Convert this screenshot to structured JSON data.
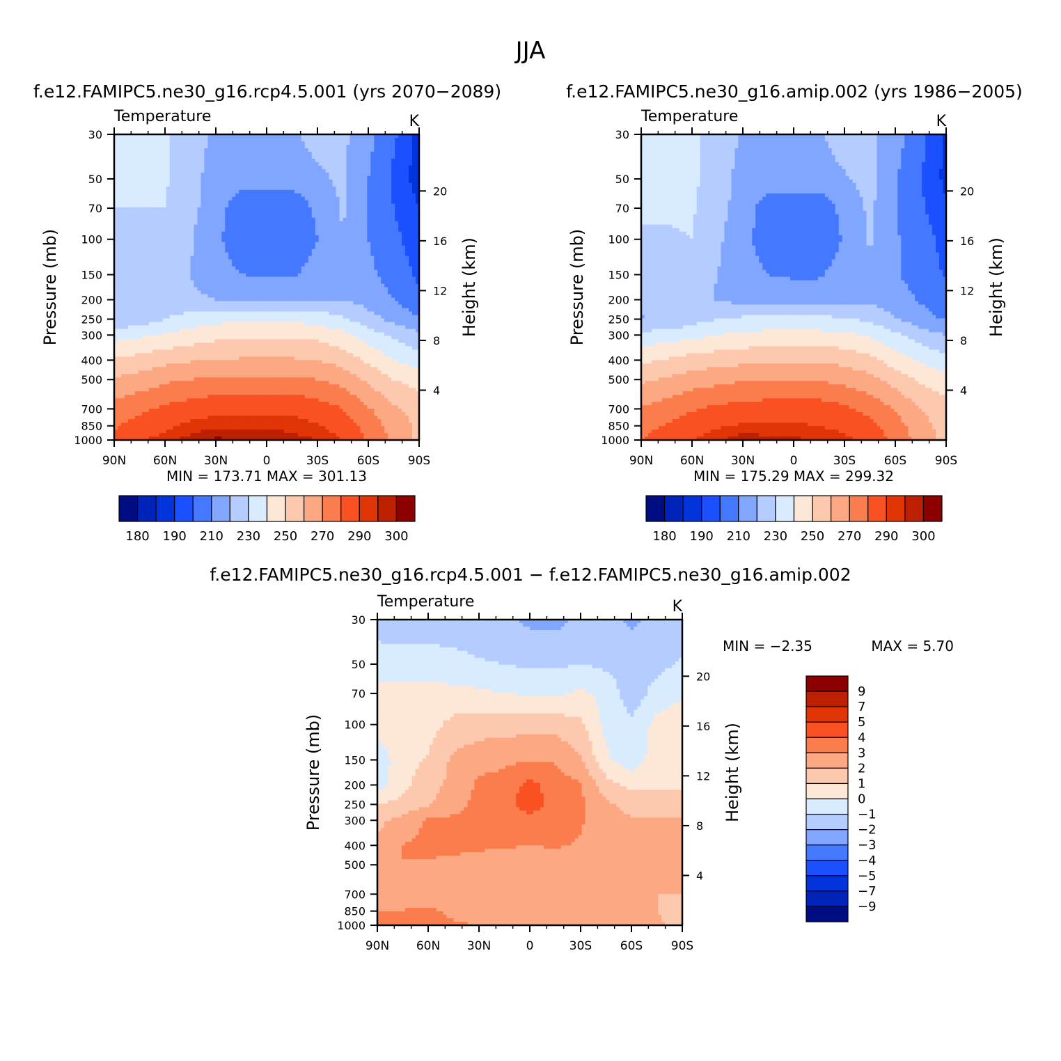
{
  "figure": {
    "title": "JJA",
    "diff_title": "f.e12.FAMIPC5.ne30_g16.rcp4.5.001 − f.e12.FAMIPC5.ne30_g16.amip.002"
  },
  "colors": {
    "abs_palette": [
      "#000d82",
      "#0023ba",
      "#0234db",
      "#1a50ff",
      "#4478ff",
      "#80a6ff",
      "#b4ccff",
      "#d9ebff",
      "#fde8d7",
      "#fdc9ae",
      "#fca883",
      "#fb7d4d",
      "#fa5122",
      "#e13506",
      "#bd2000",
      "#8c0000"
    ],
    "diff_palette": [
      "#000d82",
      "#0023ba",
      "#0234db",
      "#1a50ff",
      "#4478ff",
      "#80a6ff",
      "#b4ccff",
      "#d9ebff",
      "#fde8d7",
      "#fdc9ae",
      "#fca883",
      "#fb7d4d",
      "#fa5122",
      "#e13506",
      "#bd2000",
      "#8c0000"
    ]
  },
  "chart_data": [
    {
      "type": "heatmap",
      "title": "f.e12.FAMIPC5.ne30_g16.rcp4.5.001 (yrs 2070−2089)",
      "subtitle": "Temperature",
      "units": "K",
      "xlabel": "",
      "ylabel": "Pressure (mb)",
      "y2label": "Height (km)",
      "x_ticks": [
        "90N",
        "60N",
        "30N",
        "0",
        "30S",
        "60S",
        "90S"
      ],
      "x_tick_values": [
        90,
        60,
        30,
        0,
        -30,
        -60,
        -90
      ],
      "y_ticks": [
        30,
        50,
        70,
        100,
        150,
        200,
        250,
        300,
        400,
        500,
        700,
        850,
        1000
      ],
      "y2_ticks": [
        20,
        16,
        12,
        8,
        4
      ],
      "ylim": [
        1000,
        30
      ],
      "min_label": "MIN = 173.71",
      "max_label": "MAX = 301.13",
      "levels": [
        180,
        185,
        190,
        200,
        210,
        220,
        230,
        240,
        250,
        260,
        270,
        280,
        290,
        295,
        300
      ],
      "colorbar_labels": [
        "180",
        "190",
        "210",
        "230",
        "250",
        "270",
        "290",
        "300"
      ],
      "latitude": [
        90,
        75,
        60,
        45,
        30,
        15,
        0,
        -15,
        -30,
        -45,
        -60,
        -75,
        -90
      ],
      "pressure": [
        30,
        50,
        70,
        100,
        150,
        200,
        250,
        300,
        400,
        500,
        700,
        850,
        1000
      ],
      "values": [
        [
          230,
          230,
          231,
          225,
          218,
          218,
          218,
          218,
          224,
          222,
          213,
          202,
          186
        ],
        [
          231,
          230,
          231,
          224,
          215,
          214,
          214,
          214,
          218,
          222,
          210,
          198,
          185
        ],
        [
          230,
          230,
          230,
          223,
          214,
          204,
          203,
          203,
          212,
          221,
          210,
          200,
          190
        ],
        [
          228,
          228,
          229,
          221,
          212,
          204,
          202,
          202,
          210,
          220,
          210,
          203,
          194
        ],
        [
          227,
          227,
          227,
          220,
          214,
          210,
          209,
          209,
          214,
          220,
          212,
          206,
          198
        ],
        [
          225,
          228,
          226,
          222,
          220,
          218,
          218,
          218,
          220,
          220,
          216,
          210,
          203
        ],
        [
          222,
          224,
          230,
          234,
          237,
          238,
          238,
          238,
          236,
          232,
          224,
          217,
          211
        ],
        [
          236,
          238,
          241,
          244,
          247,
          248,
          248,
          248,
          247,
          243,
          235,
          228,
          222
        ],
        [
          251,
          254,
          257,
          259,
          260,
          261,
          261,
          261,
          260,
          256,
          248,
          240,
          235
        ],
        [
          261,
          264,
          268,
          270,
          272,
          272,
          272,
          272,
          270,
          266,
          258,
          250,
          246
        ],
        [
          274,
          278,
          282,
          285,
          287,
          288,
          288,
          288,
          285,
          280,
          271,
          262,
          256
        ],
        [
          279,
          284,
          288,
          292,
          294,
          294,
          294,
          293,
          291,
          286,
          276,
          266,
          258
        ],
        [
          283,
          289,
          293,
          297,
          301,
          300,
          299,
          297,
          295,
          290,
          279,
          268,
          258
        ]
      ]
    },
    {
      "type": "heatmap",
      "title": "f.e12.FAMIPC5.ne30_g16.amip.002 (yrs 1986−2005)",
      "subtitle": "Temperature",
      "units": "K",
      "xlabel": "",
      "ylabel": "Pressure (mb)",
      "y2label": "Height (km)",
      "x_ticks": [
        "90N",
        "60N",
        "30N",
        "0",
        "30S",
        "60S",
        "90S"
      ],
      "x_tick_values": [
        90,
        60,
        30,
        0,
        -30,
        -60,
        -90
      ],
      "y_ticks": [
        30,
        50,
        70,
        100,
        150,
        200,
        250,
        300,
        400,
        500,
        700,
        850,
        1000
      ],
      "y2_ticks": [
        20,
        16,
        12,
        8,
        4
      ],
      "ylim": [
        1000,
        30
      ],
      "min_label": "MIN = 175.29",
      "max_label": "MAX = 299.32",
      "levels": [
        180,
        185,
        190,
        200,
        210,
        220,
        230,
        240,
        250,
        260,
        270,
        280,
        290,
        295,
        300
      ],
      "colorbar_labels": [
        "180",
        "190",
        "210",
        "230",
        "250",
        "270",
        "290",
        "300"
      ],
      "latitude": [
        90,
        75,
        60,
        45,
        30,
        15,
        0,
        -15,
        -30,
        -45,
        -60,
        -75,
        -90
      ],
      "pressure": [
        30,
        50,
        70,
        100,
        150,
        200,
        250,
        300,
        400,
        500,
        700,
        850,
        1000
      ],
      "values": [
        [
          231,
          231,
          232,
          226,
          219,
          219,
          219,
          219,
          225,
          223,
          214,
          204,
          188
        ],
        [
          232,
          231,
          232,
          225,
          216,
          215,
          215,
          215,
          219,
          223,
          211,
          200,
          187
        ],
        [
          231,
          231,
          231,
          224,
          215,
          205,
          204,
          204,
          213,
          222,
          211,
          202,
          192
        ],
        [
          229,
          229,
          230,
          222,
          213,
          205,
          203,
          203,
          211,
          221,
          211,
          205,
          196
        ],
        [
          227,
          227,
          227,
          220,
          214,
          210,
          209,
          209,
          214,
          219,
          211,
          206,
          199
        ],
        [
          224,
          226,
          224,
          219,
          217,
          215,
          215,
          215,
          217,
          218,
          214,
          209,
          203
        ],
        [
          219,
          221,
          226,
          230,
          232,
          233,
          233,
          233,
          231,
          228,
          221,
          214,
          209
        ],
        [
          233,
          235,
          237,
          240,
          242,
          243,
          243,
          243,
          242,
          239,
          232,
          225,
          220
        ],
        [
          248,
          251,
          254,
          256,
          257,
          258,
          258,
          258,
          257,
          253,
          245,
          238,
          233
        ],
        [
          258,
          261,
          265,
          267,
          269,
          269,
          269,
          269,
          267,
          263,
          256,
          248,
          244
        ],
        [
          271,
          275,
          279,
          282,
          284,
          285,
          285,
          285,
          282,
          277,
          269,
          260,
          254
        ],
        [
          276,
          281,
          285,
          289,
          291,
          291,
          291,
          290,
          288,
          283,
          274,
          264,
          256
        ],
        [
          280,
          286,
          290,
          294,
          298,
          297,
          296,
          294,
          292,
          287,
          277,
          266,
          256
        ]
      ]
    },
    {
      "type": "heatmap",
      "title": "f.e12.FAMIPC5.ne30_g16.rcp4.5.001 − f.e12.FAMIPC5.ne30_g16.amip.002",
      "subtitle": "Temperature",
      "units": "K",
      "xlabel": "",
      "ylabel": "Pressure (mb)",
      "y2label": "Height (km)",
      "x_ticks": [
        "90N",
        "60N",
        "30N",
        "0",
        "30S",
        "60S",
        "90S"
      ],
      "x_tick_values": [
        90,
        60,
        30,
        0,
        -30,
        -60,
        -90
      ],
      "y_ticks": [
        30,
        50,
        70,
        100,
        150,
        200,
        250,
        300,
        400,
        500,
        700,
        850,
        1000
      ],
      "y2_ticks": [
        20,
        16,
        12,
        8,
        4
      ],
      "ylim": [
        1000,
        30
      ],
      "min_label": "MIN =   −2.35",
      "max_label": "MAX =    5.70",
      "levels": [
        -9,
        -7,
        -5,
        -4,
        -3,
        -2,
        -1,
        0,
        1,
        2,
        3,
        4,
        5,
        7,
        9
      ],
      "colorbar_labels": [
        "9",
        "7",
        "5",
        "4",
        "3",
        "2",
        "1",
        "0",
        "−1",
        "−2",
        "−3",
        "−4",
        "−5",
        "−7",
        "−9"
      ],
      "latitude": [
        90,
        75,
        60,
        45,
        30,
        15,
        0,
        -15,
        -30,
        -45,
        -60,
        -75,
        -90
      ],
      "pressure": [
        30,
        50,
        70,
        100,
        150,
        200,
        250,
        300,
        400,
        500,
        700,
        850,
        1000
      ],
      "values": [
        [
          -1.5,
          -1.5,
          -1.5,
          -1.5,
          -1.6,
          -1.8,
          -2.2,
          -2.3,
          -1.7,
          -1.5,
          -2.2,
          -1.6,
          -1.5
        ],
        [
          -0.5,
          -0.6,
          -0.6,
          -0.7,
          -0.9,
          -1.0,
          -1.2,
          -1.2,
          -1.0,
          -1.2,
          -1.5,
          -1.3,
          -0.9
        ],
        [
          0.3,
          0.3,
          0.4,
          0.3,
          0.2,
          0.0,
          -0.1,
          -0.2,
          0.2,
          -0.3,
          -1.6,
          -0.6,
          -0.1
        ],
        [
          0.4,
          0.4,
          0.6,
          1.3,
          1.5,
          1.6,
          1.6,
          1.6,
          1.2,
          -0.3,
          -0.8,
          0.3,
          0.6
        ],
        [
          -0.6,
          0.6,
          1.1,
          2.2,
          2.6,
          2.8,
          2.9,
          2.9,
          2.1,
          0.2,
          -0.6,
          0.5,
          0.7
        ],
        [
          -0.5,
          0.7,
          1.6,
          2.3,
          3.2,
          3.4,
          4.3,
          3.5,
          3.1,
          1.4,
          0.7,
          0.8,
          0.8
        ],
        [
          1.0,
          1.3,
          1.9,
          2.6,
          3.3,
          3.6,
          4.6,
          3.6,
          3.2,
          2.2,
          1.6,
          1.5,
          1.5
        ],
        [
          1.8,
          2.3,
          3.1,
          3.2,
          3.4,
          3.6,
          3.6,
          3.5,
          3.1,
          2.4,
          2.1,
          2.1,
          2.1
        ],
        [
          2.1,
          3.0,
          3.4,
          3.3,
          3.2,
          3.1,
          3.0,
          3.1,
          2.9,
          2.3,
          2.1,
          2.1,
          2.1
        ],
        [
          2.4,
          3.0,
          2.8,
          2.7,
          2.5,
          2.5,
          2.5,
          2.5,
          2.4,
          2.3,
          2.2,
          2.2,
          2.2
        ],
        [
          2.6,
          2.9,
          2.5,
          2.3,
          2.4,
          2.4,
          2.4,
          2.4,
          2.3,
          2.2,
          2.1,
          2.0,
          2.0
        ],
        [
          3.0,
          3.0,
          3.2,
          2.8,
          2.6,
          2.5,
          2.4,
          2.3,
          2.2,
          2.2,
          2.1,
          2.0,
          1.8
        ],
        [
          3.2,
          3.3,
          3.2,
          3.1,
          3.0,
          3.0,
          3.0,
          2.9,
          2.7,
          2.4,
          2.3,
          2.1,
          1.8
        ]
      ]
    }
  ]
}
